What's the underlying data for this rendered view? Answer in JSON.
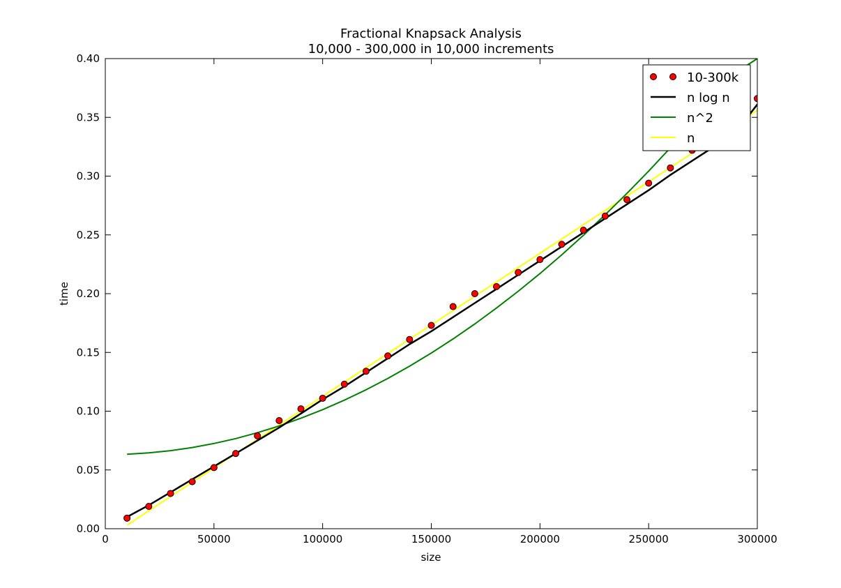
{
  "chart_data": {
    "type": "line",
    "title": "Fractional Knapsack Analysis",
    "subtitle": "10,000 - 300,000 in 10,000 increments",
    "xlabel": "size",
    "ylabel": "time",
    "xlim": [
      0,
      300000
    ],
    "ylim": [
      0.0,
      0.4
    ],
    "xticks": [
      0,
      50000,
      100000,
      150000,
      200000,
      250000,
      300000
    ],
    "xtick_labels": [
      "0",
      "50000",
      "100000",
      "150000",
      "200000",
      "250000",
      "300000"
    ],
    "yticks": [
      0.0,
      0.05,
      0.1,
      0.15,
      0.2,
      0.25,
      0.3,
      0.35,
      0.4
    ],
    "ytick_labels": [
      "0.00",
      "0.05",
      "0.10",
      "0.15",
      "0.20",
      "0.25",
      "0.30",
      "0.35",
      "0.40"
    ],
    "grid": false,
    "legend_position": "top-right",
    "series": [
      {
        "name": "10-300k",
        "kind": "scatter",
        "color": "#ff0000",
        "x": [
          10000,
          20000,
          30000,
          40000,
          50000,
          60000,
          70000,
          80000,
          90000,
          100000,
          110000,
          120000,
          130000,
          140000,
          150000,
          160000,
          170000,
          180000,
          190000,
          200000,
          210000,
          220000,
          230000,
          240000,
          250000,
          260000,
          270000,
          280000,
          290000,
          300000
        ],
        "y": [
          0.009,
          0.019,
          0.03,
          0.04,
          0.052,
          0.064,
          0.079,
          0.092,
          0.102,
          0.111,
          0.123,
          0.134,
          0.147,
          0.161,
          0.173,
          0.189,
          0.2,
          0.206,
          0.218,
          0.229,
          0.242,
          0.254,
          0.266,
          0.28,
          0.294,
          0.307,
          0.322,
          0.337,
          0.352,
          0.366
        ]
      },
      {
        "name": "n log n",
        "kind": "line",
        "color": "#000000",
        "x": [
          10000,
          20000,
          30000,
          40000,
          50000,
          60000,
          70000,
          80000,
          90000,
          100000,
          110000,
          120000,
          130000,
          140000,
          150000,
          160000,
          170000,
          180000,
          190000,
          200000,
          210000,
          220000,
          230000,
          240000,
          250000,
          260000,
          270000,
          280000,
          290000,
          300000
        ],
        "y": [
          0.01,
          0.02,
          0.031,
          0.042,
          0.053,
          0.064,
          0.075,
          0.086,
          0.098,
          0.11,
          0.121,
          0.133,
          0.145,
          0.157,
          0.168,
          0.18,
          0.192,
          0.204,
          0.216,
          0.228,
          0.24,
          0.252,
          0.264,
          0.276,
          0.288,
          0.301,
          0.313,
          0.325,
          0.337,
          0.361
        ]
      },
      {
        "name": "n^2",
        "kind": "line",
        "color": "#008000",
        "x": [
          10000,
          20000,
          30000,
          40000,
          50000,
          60000,
          70000,
          80000,
          90000,
          100000,
          110000,
          120000,
          130000,
          140000,
          150000,
          160000,
          170000,
          180000,
          190000,
          200000,
          210000,
          220000,
          230000,
          240000,
          250000,
          260000,
          270000,
          280000,
          290000,
          300000
        ],
        "y": [
          0.0634,
          0.0645,
          0.0664,
          0.0691,
          0.0725,
          0.0767,
          0.0817,
          0.0874,
          0.094,
          0.1013,
          0.1094,
          0.1182,
          0.1279,
          0.1383,
          0.1495,
          0.1615,
          0.1742,
          0.1878,
          0.2021,
          0.2171,
          0.233,
          0.2497,
          0.2671,
          0.2853,
          0.3043,
          0.3241,
          0.3446,
          0.366,
          0.3881,
          0.4
        ]
      },
      {
        "name": "n",
        "kind": "line",
        "color": "#ffff00",
        "x": [
          10000,
          300000
        ],
        "y": [
          0.003,
          0.356
        ]
      }
    ]
  }
}
